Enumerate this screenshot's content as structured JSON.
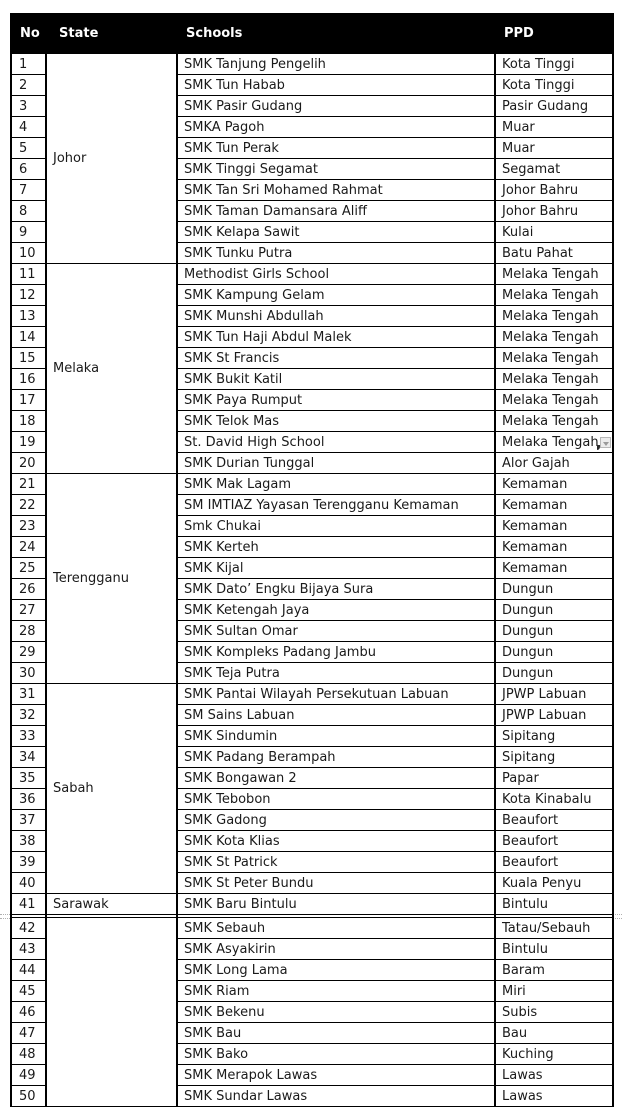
{
  "page": {
    "background": "#ffffff"
  },
  "colors": {
    "header_bg": "#000000",
    "header_text": "#ffffff",
    "body_text": "#1a1a1a",
    "border": "#000000",
    "page_break_line": "#b0b0b0",
    "autocorrect_icon_bg": "#ececec",
    "autocorrect_icon_border": "#b8b8b8"
  },
  "icons": {
    "autocorrect_options": "small gray square button with down triangle"
  },
  "table": {
    "columns": [
      "No",
      "State",
      "Schools",
      "PPD"
    ],
    "page_break_after_row": 41,
    "state_groups": [
      {
        "state": "Johor",
        "from": 1,
        "to": 10
      },
      {
        "state": "Melaka",
        "from": 11,
        "to": 20
      },
      {
        "state": "Terengganu",
        "from": 21,
        "to": 30
      },
      {
        "state": "Sabah",
        "from": 31,
        "to": 40
      },
      {
        "state": "Sarawak",
        "from": 41,
        "to": 41
      },
      {
        "state": "",
        "from": 42,
        "to": 50
      }
    ],
    "rows": [
      {
        "no": "1",
        "school": "SMK Tanjung Pengelih",
        "ppd": "Kota Tinggi"
      },
      {
        "no": "2",
        "school": "SMK Tun Habab",
        "ppd": "Kota Tinggi"
      },
      {
        "no": "3",
        "school": "SMK Pasir Gudang",
        "ppd": "Pasir Gudang"
      },
      {
        "no": "4",
        "school": "SMKA Pagoh",
        "ppd": "Muar"
      },
      {
        "no": "5",
        "school": "SMK Tun Perak",
        "ppd": "Muar"
      },
      {
        "no": "6",
        "school": "SMK Tinggi Segamat",
        "ppd": "Segamat"
      },
      {
        "no": "7",
        "school": "SMK Tan Sri Mohamed Rahmat",
        "ppd": "Johor Bahru"
      },
      {
        "no": "8",
        "school": "SMK Taman Damansara Aliff",
        "ppd": "Johor Bahru"
      },
      {
        "no": "9",
        "school": "SMK Kelapa Sawit",
        "ppd": "Kulai"
      },
      {
        "no": "10",
        "school": "SMK Tunku Putra",
        "ppd": "Batu Pahat"
      },
      {
        "no": "11",
        "school": "Methodist Girls School",
        "ppd": "Melaka Tengah"
      },
      {
        "no": "12",
        "school": "SMK Kampung Gelam",
        "ppd": "Melaka Tengah"
      },
      {
        "no": "13",
        "school": "SMK Munshi Abdullah",
        "ppd": "Melaka Tengah"
      },
      {
        "no": "14",
        "school": "SMK Tun Haji Abdul Malek",
        "ppd": "Melaka Tengah"
      },
      {
        "no": "15",
        "school": "SMK St Francis",
        "ppd": "Melaka Tengah"
      },
      {
        "no": "16",
        "school": "SMK Bukit Katil",
        "ppd": "Melaka Tengah"
      },
      {
        "no": "17",
        "school": "SMK Paya Rumput",
        "ppd": "Melaka Tengah"
      },
      {
        "no": "18",
        "school": "SMK Telok Mas",
        "ppd": "Melaka Tengah"
      },
      {
        "no": "19",
        "school": "St. David High School",
        "ppd": "Melaka Tengah",
        "has_icon": true
      },
      {
        "no": "20",
        "school": "SMK Durian Tunggal",
        "ppd": "Alor Gajah"
      },
      {
        "no": "21",
        "school": "SMK Mak Lagam",
        "ppd": "Kemaman"
      },
      {
        "no": "22",
        "school": "SM IMTIAZ Yayasan Terengganu Kemaman",
        "ppd": "Kemaman"
      },
      {
        "no": "23",
        "school": "Smk Chukai",
        "ppd": "Kemaman"
      },
      {
        "no": "24",
        "school": "SMK Kerteh",
        "ppd": "Kemaman"
      },
      {
        "no": "25",
        "school": "SMK Kijal",
        "ppd": "Kemaman"
      },
      {
        "no": "26",
        "school": "SMK Dato’ Engku Bijaya Sura",
        "ppd": "Dungun"
      },
      {
        "no": "27",
        "school": "SMK Ketengah Jaya",
        "ppd": "Dungun"
      },
      {
        "no": "28",
        "school": "SMK Sultan Omar",
        "ppd": "Dungun"
      },
      {
        "no": "29",
        "school": "SMK Kompleks Padang Jambu",
        "ppd": "Dungun"
      },
      {
        "no": "30",
        "school": "SMK Teja Putra",
        "ppd": "Dungun"
      },
      {
        "no": "31",
        "school": "SMK Pantai Wilayah Persekutuan Labuan",
        "ppd": "JPWP Labuan"
      },
      {
        "no": "32",
        "school": "SM Sains Labuan",
        "ppd": "JPWP Labuan"
      },
      {
        "no": "33",
        "school": "SMK Sindumin",
        "ppd": "Sipitang"
      },
      {
        "no": "34",
        "school": "SMK Padang Berampah",
        "ppd": "Sipitang"
      },
      {
        "no": "35",
        "school": "SMK Bongawan 2",
        "ppd": "Papar"
      },
      {
        "no": "36",
        "school": "SMK Tebobon",
        "ppd": "Kota Kinabalu"
      },
      {
        "no": "37",
        "school": "SMK Gadong",
        "ppd": "Beaufort"
      },
      {
        "no": "38",
        "school": "SMK Kota Klias",
        "ppd": "Beaufort"
      },
      {
        "no": "39",
        "school": "SMK St Patrick",
        "ppd": "Beaufort"
      },
      {
        "no": "40",
        "school": "SMK St Peter Bundu",
        "ppd": "Kuala Penyu"
      },
      {
        "no": "41",
        "school": "SMK Baru Bintulu",
        "ppd": "Bintulu"
      },
      {
        "no": "42",
        "school": "SMK Sebauh",
        "ppd": "Tatau/Sebauh"
      },
      {
        "no": "43",
        "school": "SMK Asyakirin",
        "ppd": "Bintulu"
      },
      {
        "no": "44",
        "school": "SMK Long Lama",
        "ppd": "Baram"
      },
      {
        "no": "45",
        "school": "SMK Riam",
        "ppd": "Miri"
      },
      {
        "no": "46",
        "school": "SMK Bekenu",
        "ppd": "Subis"
      },
      {
        "no": "47",
        "school": "SMK Bau",
        "ppd": "Bau"
      },
      {
        "no": "48",
        "school": "SMK Bako",
        "ppd": "Kuching"
      },
      {
        "no": "49",
        "school": "SMK Merapok Lawas",
        "ppd": "Lawas"
      },
      {
        "no": "50",
        "school": "SMK Sundar Lawas",
        "ppd": "Lawas"
      }
    ]
  }
}
